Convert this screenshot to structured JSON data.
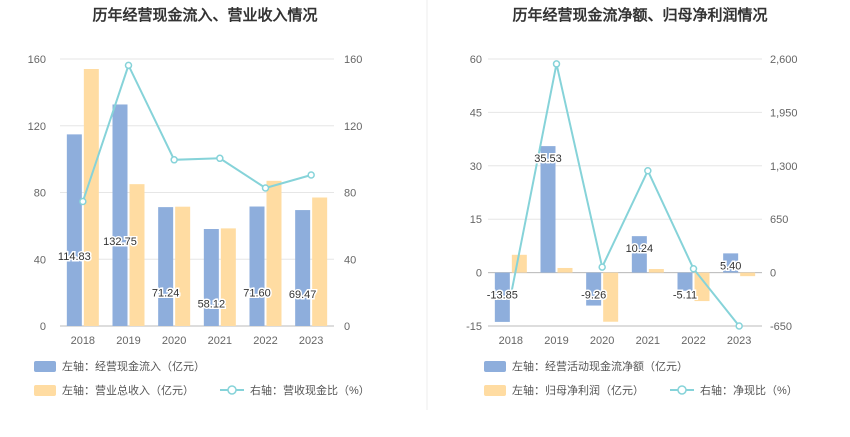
{
  "colors": {
    "bar_primary": "#8eaedc",
    "bar_secondary": "#ffdca2",
    "line": "#86d3d9",
    "grid": "#e6e6e6",
    "axis": "#bbbbbb",
    "divider": "#eeeeee"
  },
  "chart_data": [
    {
      "type": "bar",
      "title": "历年经营现金流入、营业收入情况",
      "categories": [
        "2018",
        "2019",
        "2020",
        "2021",
        "2022",
        "2023"
      ],
      "left_axis": {
        "ticks": [
          "0",
          "40",
          "80",
          "120",
          "160"
        ],
        "ylim": [
          0,
          160
        ]
      },
      "right_axis": {
        "ticks": [
          "0",
          "40",
          "80",
          "120",
          "160"
        ],
        "ylim": [
          0,
          160
        ]
      },
      "grid": true,
      "legend_position": "bottom",
      "series": [
        {
          "name": "左轴：经营现金流入（亿元）",
          "kind": "bar",
          "axis": "left",
          "values": [
            114.83,
            132.75,
            71.24,
            58.12,
            71.6,
            69.47
          ],
          "labels": [
            "114.83",
            "132.75",
            "71.24",
            "58.12",
            "71.60",
            "69.47"
          ]
        },
        {
          "name": "左轴：营业总收入（亿元）",
          "kind": "bar",
          "axis": "left",
          "values": [
            154,
            85,
            71.5,
            58.5,
            87,
            77
          ],
          "labels": []
        },
        {
          "name": "右轴：营收现金比（%）",
          "kind": "line",
          "axis": "right",
          "values": [
            74.6,
            156.2,
            99.6,
            100.5,
            82.7,
            90.5
          ],
          "labels": []
        }
      ]
    },
    {
      "type": "bar",
      "title": "历年经营现金流净额、归母净利润情况",
      "categories": [
        "2018",
        "2019",
        "2020",
        "2021",
        "2022",
        "2023"
      ],
      "left_axis": {
        "ticks": [
          "-15",
          "0",
          "15",
          "30",
          "45",
          "60"
        ],
        "ylim": [
          -15,
          60
        ]
      },
      "right_axis": {
        "ticks": [
          "-650",
          "0",
          "650",
          "1,300",
          "1,950",
          "2,600"
        ],
        "ylim": [
          -650,
          2600
        ]
      },
      "grid": true,
      "legend_position": "bottom",
      "series": [
        {
          "name": "左轴：经营活动现金流净额（亿元）",
          "kind": "bar",
          "axis": "left",
          "values": [
            -13.85,
            35.53,
            -9.26,
            10.24,
            -5.11,
            5.4
          ],
          "labels": [
            "-13.85",
            "35.53",
            "-9.26",
            "10.24",
            "-5.11",
            "5.40"
          ]
        },
        {
          "name": "左轴：归母净利润（亿元）",
          "kind": "bar",
          "axis": "left",
          "values": [
            5,
            1.3,
            -13.8,
            1,
            -8,
            -1
          ],
          "labels": []
        },
        {
          "name": "右轴：净现比（%）",
          "kind": "line",
          "axis": "right",
          "values": [
            -277,
            2540,
            67,
            1240,
            47,
            -650
          ],
          "labels": []
        }
      ]
    }
  ]
}
